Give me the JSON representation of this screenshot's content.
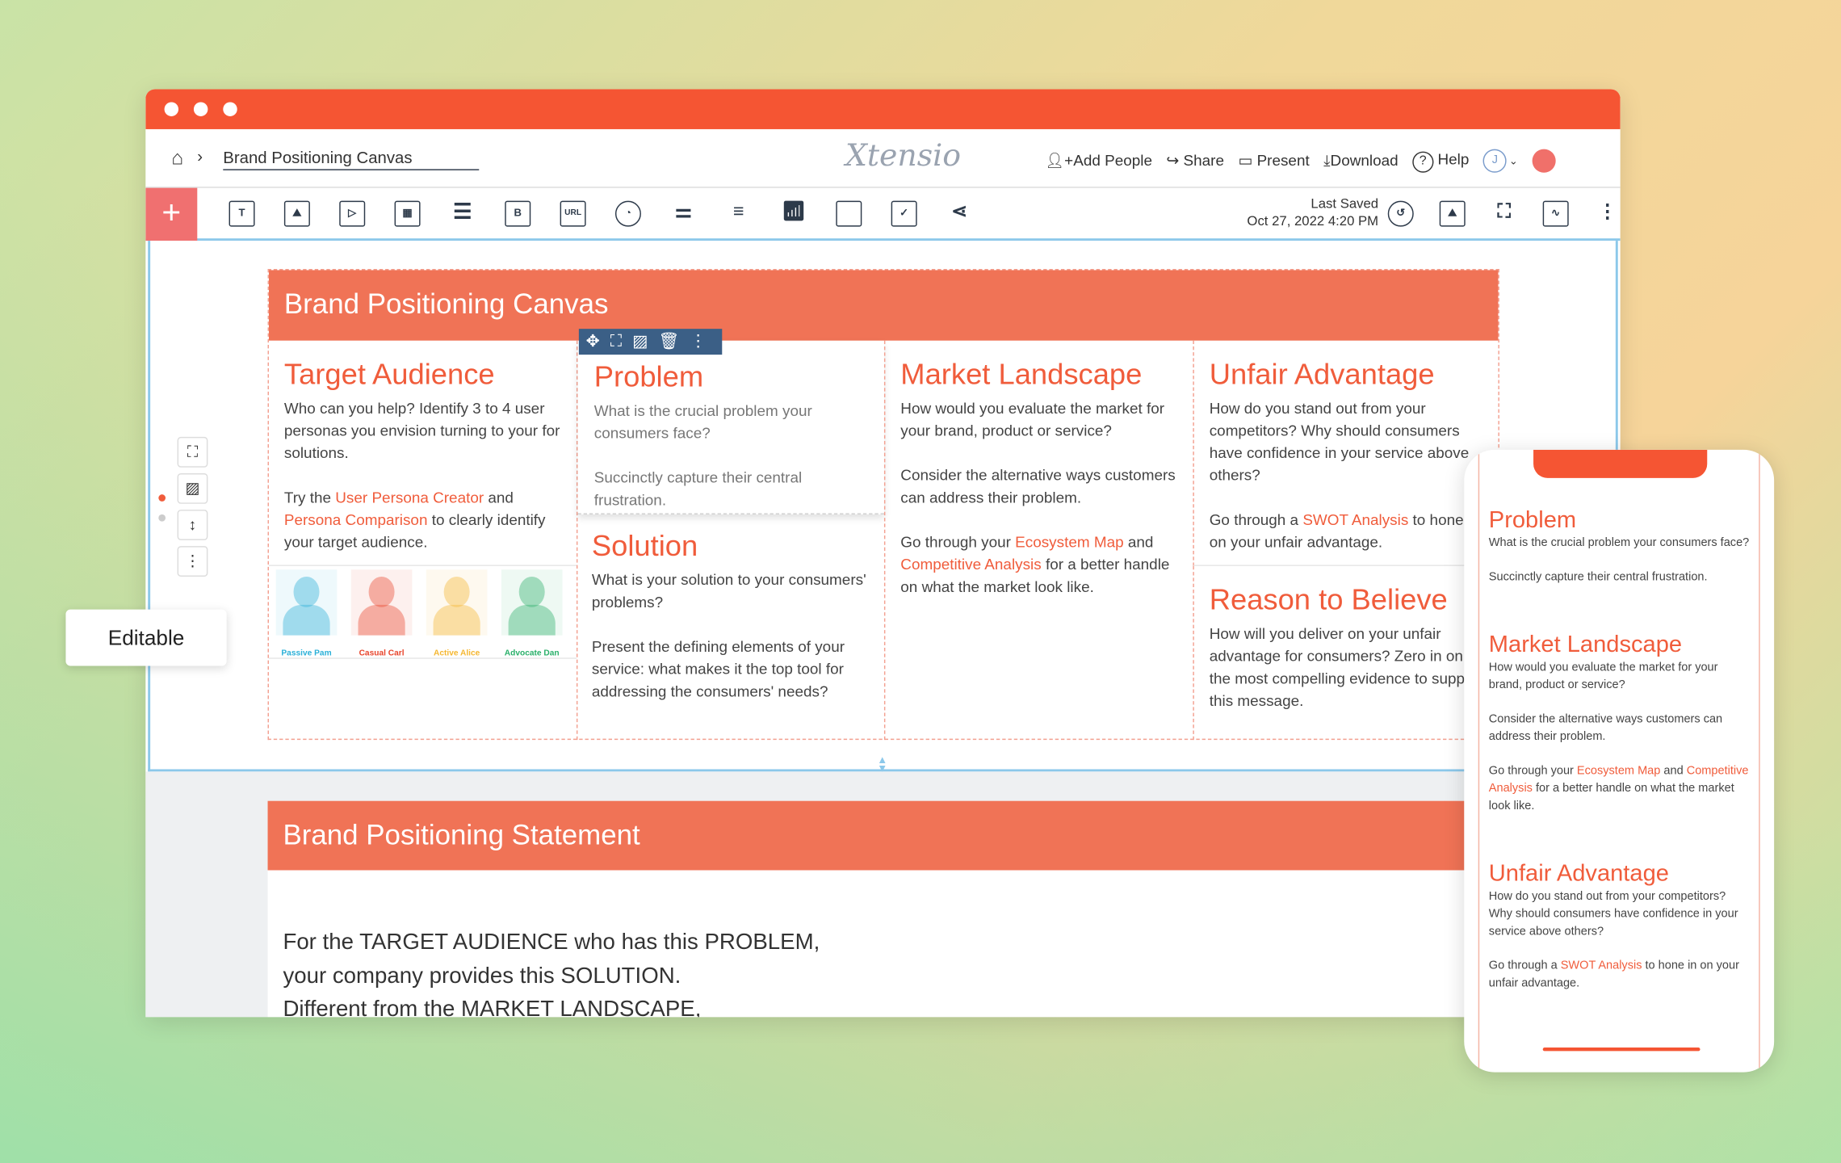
{
  "header": {
    "breadcrumb_title": "Brand Positioning Canvas",
    "logo": "Xtensio",
    "add_people": "Add People",
    "share": "Share",
    "present": "Present",
    "download": "Download",
    "help": "Help",
    "avatar": "J"
  },
  "toolbar": {
    "add": "+",
    "tools": [
      "text",
      "image",
      "video",
      "table",
      "list",
      "button",
      "url",
      "chart",
      "slider",
      "bars",
      "graph",
      "tag",
      "form",
      "share-nodes"
    ],
    "btn_label": "B",
    "url_label": "URL",
    "last_saved_label": "Last Saved",
    "last_saved_date": "Oct 27, 2022 4:20 PM"
  },
  "editable_label": "Editable",
  "canvas": {
    "title": "Brand Positioning Canvas",
    "target": {
      "title": "Target Audience",
      "p1": "Who can you help? Identify 3 to 4 user personas you envision turning to your for solutions.",
      "p2a": "Try the ",
      "link1": "User Persona Creator",
      "p2b": " and ",
      "link2": "Persona Comparison",
      "p2c": " to clearly identify your target audience.",
      "personas": [
        {
          "name": "Passive Pam",
          "color": "#2bb0d8"
        },
        {
          "name": "Casual Carl",
          "color": "#e8452c"
        },
        {
          "name": "Active Alice",
          "color": "#f5b731"
        },
        {
          "name": "Advocate Dan",
          "color": "#2ab06a"
        }
      ]
    },
    "problem": {
      "title": "Problem",
      "p1": "What is the crucial problem your consumers face?",
      "p2": "Succinctly capture their central frustration."
    },
    "solution": {
      "title": "Solution",
      "p1": "What is your solution to your consumers' problems?",
      "p2": "Present the defining elements of your service: what makes it the top tool for addressing the consumers' needs?"
    },
    "market": {
      "title": "Market Landscape",
      "p1": "How would you evaluate the market for your brand, product or service?",
      "p2": "Consider the alternative ways customers can address their problem.",
      "p3a": "Go through your ",
      "link1": "Ecosystem Map",
      "p3b": " and ",
      "link2": "Competitive Analysis",
      "p3c": " for a better handle on what the market look like."
    },
    "unfair": {
      "title": "Unfair Advantage",
      "p1": "How do you stand out from your competitors? Why should consumers have confidence in your service above others?",
      "p2a": "Go through a ",
      "link": "SWOT Analysis",
      "p2b": " to hone in on your unfair advantage."
    },
    "reason": {
      "title": "Reason to Believe",
      "p1": "How will you deliver on your unfair advantage for consumers? Zero in on the most compelling evidence to support this message."
    }
  },
  "statement": {
    "title": "Brand Positioning Statement",
    "lines": [
      "For the TARGET AUDIENCE who has this PROBLEM,",
      "your company provides this SOLUTION.",
      "Different from the MARKET LANDSCAPE,"
    ]
  },
  "phone": {
    "problem_title": "Problem",
    "problem_p1": "What is the crucial problem your consumers face?",
    "problem_p2": "Succinctly capture their central frustration.",
    "market_title": "Market Landscape",
    "market_p1": "How would you evaluate the market for your brand, product or service?",
    "market_p2": "Consider the alternative ways customers can address their problem.",
    "market_p3a": "Go through your ",
    "market_link1": "Ecosystem Map",
    "market_p3b": " and ",
    "market_link2": "Competitive Analysis",
    "market_p3c": " for a better handle on what the market look like.",
    "unfair_title": "Unfair Advantage",
    "unfair_p1": "How do you stand out from your competitors? Why should consumers have confidence in your service above others?",
    "unfair_p2a": "Go through a ",
    "unfair_link": "SWOT Analysis",
    "unfair_p2b": " to hone in on your unfair advantage."
  },
  "colors": {
    "brand": "#f55533",
    "section": "#f07356",
    "selection": "#8cc8ea",
    "block_toolbar": "#3b5f86"
  }
}
